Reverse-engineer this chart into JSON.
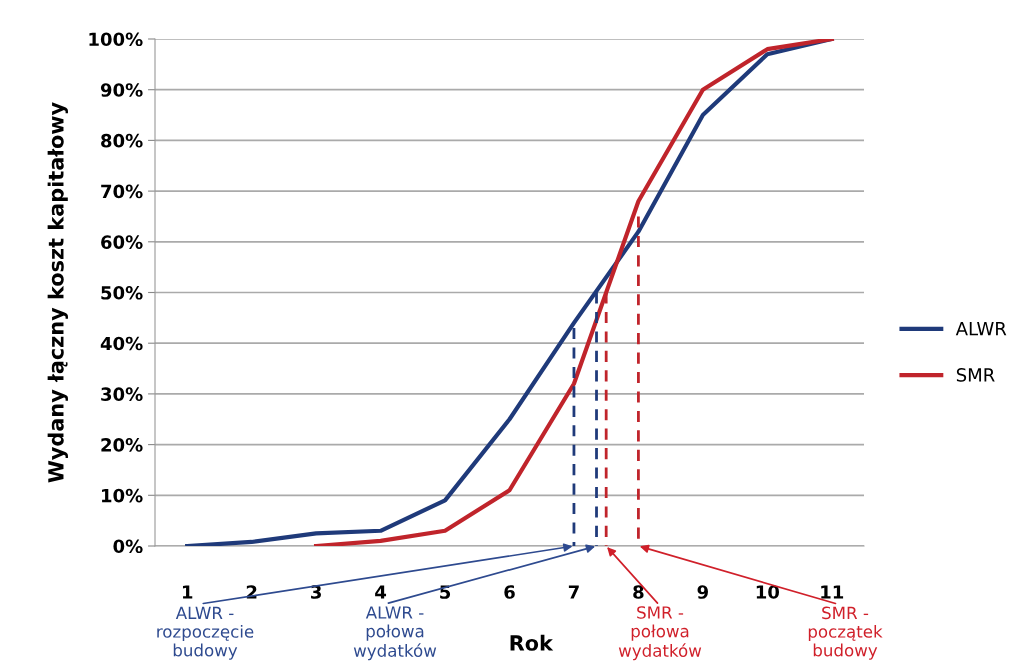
{
  "chart_data": {
    "type": "line",
    "xlabel": "Rok",
    "ylabel": "Wydany łączny koszt kapitałowy",
    "x": [
      1,
      2,
      3,
      4,
      5,
      6,
      7,
      8,
      9,
      10,
      11
    ],
    "xlim": [
      0.5,
      11.5
    ],
    "xticks": [
      1,
      2,
      3,
      4,
      5,
      6,
      7,
      8,
      9,
      10,
      11
    ],
    "ylim": [
      0,
      100
    ],
    "yticks": [
      {
        "value": 0,
        "label": "0%"
      },
      {
        "value": 10,
        "label": "10%"
      },
      {
        "value": 20,
        "label": "20%"
      },
      {
        "value": 30,
        "label": "30%"
      },
      {
        "value": 40,
        "label": "40%"
      },
      {
        "value": 50,
        "label": "50%"
      },
      {
        "value": 60,
        "label": "60%"
      },
      {
        "value": 70,
        "label": "70%"
      },
      {
        "value": 80,
        "label": "80%"
      },
      {
        "value": 90,
        "label": "90%"
      },
      {
        "value": 100,
        "label": "100%"
      }
    ],
    "grid": "y",
    "legend": "right",
    "marker": "none",
    "series": [
      {
        "name": "ALWR",
        "color": "#1f3a7a",
        "values": [
          0,
          0.8,
          2.5,
          3,
          9,
          25,
          44,
          62,
          85,
          97,
          100
        ]
      },
      {
        "name": "SMR",
        "color": "#c0242b",
        "values": [
          null,
          null,
          0,
          1,
          3,
          11,
          32,
          68,
          90,
          98,
          100
        ]
      },
      {
        "color": "#1f3a7a",
        "x": [
          7,
          7
        ],
        "values": [
          43,
          0
        ],
        "line_style": "dashed"
      },
      {
        "color": "#1f3a7a",
        "x": [
          7.35,
          7.35
        ],
        "values": [
          50,
          0
        ],
        "line_style": "dashed"
      },
      {
        "color": "#c0242b",
        "x": [
          7.5,
          7.5
        ],
        "values": [
          50,
          0
        ],
        "line_style": "dashed"
      },
      {
        "color": "#c0242b",
        "x": [
          8,
          8
        ],
        "values": [
          65,
          0
        ],
        "line_style": "dashed"
      }
    ],
    "annotations": [
      {
        "text": "ALWR -\nrozpoczęcie\nbudowy",
        "x": 7,
        "y": 0
      },
      {
        "text": "ALWR -\npołowa\nwydatków",
        "x": 7.35,
        "y": 0
      },
      {
        "text": "SMR -\npołowa\nwydatków",
        "x": 7.5,
        "y": 0
      },
      {
        "text": "SMR -\npoczątek\nbudowy",
        "x": 8,
        "y": 0
      }
    ]
  }
}
